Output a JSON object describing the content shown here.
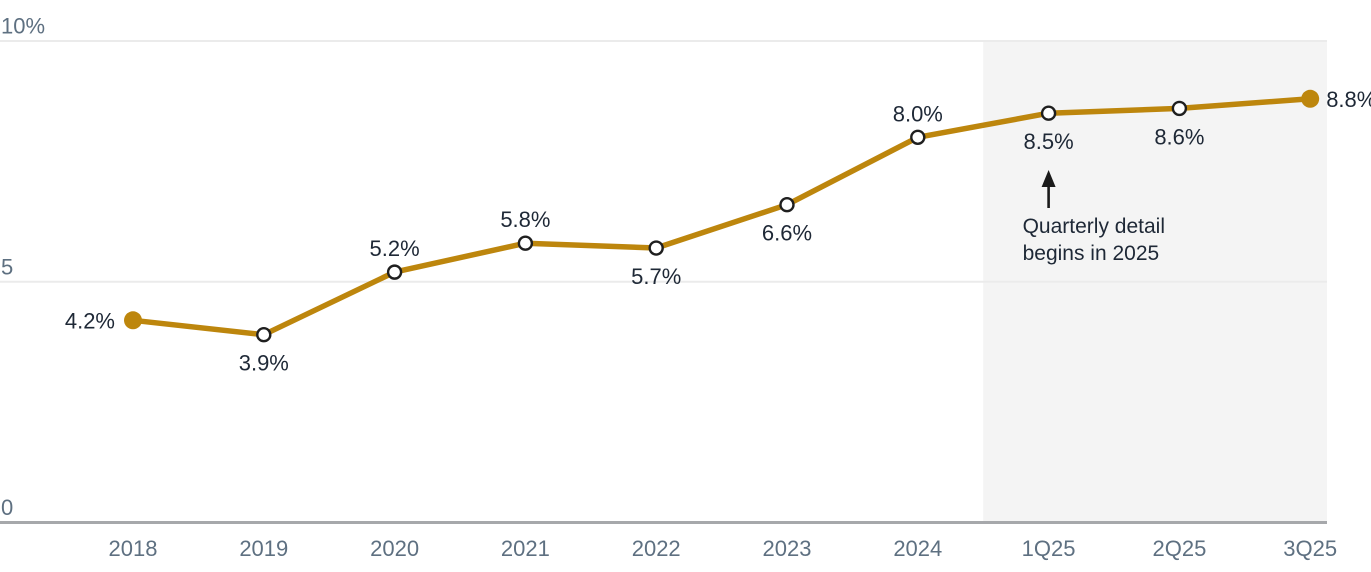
{
  "chart_data": {
    "type": "line",
    "title": "",
    "categories": [
      "2018",
      "2019",
      "2020",
      "2021",
      "2022",
      "2023",
      "2024",
      "1Q25",
      "2Q25",
      "3Q25"
    ],
    "values": [
      4.2,
      3.9,
      5.2,
      5.8,
      5.7,
      6.6,
      8.0,
      8.5,
      8.6,
      8.8
    ],
    "labels": [
      "4.2%",
      "3.9%",
      "5.2%",
      "5.8%",
      "5.7%",
      "6.6%",
      "8.0%",
      "8.5%",
      "8.6%",
      "8.8%"
    ],
    "label_placement": [
      "left",
      "below",
      "above",
      "above",
      "below",
      "below",
      "above",
      "below",
      "below",
      "right"
    ],
    "marker_style": [
      "filled",
      "open",
      "open",
      "open",
      "open",
      "open",
      "open",
      "open",
      "open",
      "filled"
    ],
    "ylim": [
      0,
      10
    ],
    "yticks": [
      {
        "value": 0,
        "label": "0"
      },
      {
        "value": 5,
        "label": "5"
      },
      {
        "value": 10,
        "label": "10%"
      }
    ],
    "grid": "horizontal gridlines at 5 and 10, baseline axis at 0",
    "legend_position": "none",
    "colors": {
      "line": "#bd860d",
      "marker_open_stroke": "#1f1f1f",
      "marker_open_fill": "#ffffff",
      "data_label": "#1e2836",
      "axis_label": "#5e7081",
      "axis_line": "#a6a8ab",
      "gridline": "#ebebeb",
      "highlight_fill": "#f4f4f4",
      "background": "#ffffff",
      "annotation_arrow": "#1a1a1a"
    },
    "highlight_region": {
      "from_category": "1Q25",
      "to_category": "3Q25",
      "note": "shaded band covering the 2025 quarterly portion of the x-axis"
    },
    "annotation": {
      "lines": [
        "Quarterly detail",
        "begins in 2025"
      ],
      "arrow": "up",
      "points_to_category": "1Q25"
    }
  }
}
